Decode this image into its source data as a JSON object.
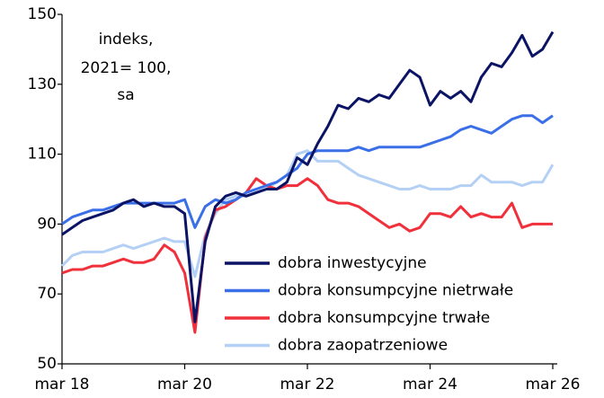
{
  "chart_data": {
    "type": "line",
    "annotation": [
      "indeks,",
      "2021= 100,",
      "sa"
    ],
    "categories": [
      "mar 18",
      null,
      null,
      null,
      null,
      null,
      null,
      null,
      null,
      null,
      null,
      null,
      "mar 20",
      null,
      null,
      null,
      null,
      null,
      null,
      null,
      null,
      null,
      null,
      null,
      "mar 22",
      null,
      null,
      null,
      null,
      null,
      null,
      null,
      null,
      null,
      null,
      null,
      "mar 24",
      null,
      null,
      null,
      null,
      null,
      null,
      null,
      null,
      null,
      null,
      null,
      "mar 26"
    ],
    "ylim": [
      50,
      150
    ],
    "yticks": [
      50,
      70,
      90,
      110,
      130,
      150
    ],
    "legend": "bottom-right",
    "series": [
      {
        "name": "dobra inwestycyjne",
        "color": "#0b1464",
        "values": [
          87,
          89,
          91,
          92,
          93,
          94,
          96,
          97,
          95,
          96,
          95,
          95,
          93,
          62,
          85,
          95,
          98,
          99,
          98,
          99,
          100,
          100,
          102,
          109,
          107,
          113,
          118,
          124,
          123,
          126,
          125,
          127,
          126,
          130,
          134,
          132,
          124,
          128,
          126,
          128,
          125,
          132,
          136,
          135,
          139,
          144,
          138,
          140,
          145
        ]
      },
      {
        "name": "dobra konsumpcyjne nietrwałe",
        "color": "#3a6fe8",
        "values": [
          90,
          92,
          93,
          94,
          94,
          95,
          96,
          96,
          96,
          96,
          96,
          96,
          97,
          89,
          95,
          97,
          96,
          97,
          99,
          100,
          101,
          102,
          104,
          106,
          110,
          111,
          111,
          111,
          111,
          112,
          111,
          112,
          112,
          112,
          112,
          112,
          113,
          114,
          115,
          117,
          118,
          117,
          116,
          118,
          120,
          121,
          121,
          119,
          121
        ]
      },
      {
        "name": "dobra konsumpcyjne trwałe",
        "color": "#f0303a",
        "values": [
          76,
          77,
          77,
          78,
          78,
          79,
          80,
          79,
          79,
          80,
          84,
          82,
          76,
          59,
          86,
          94,
          95,
          97,
          99,
          103,
          101,
          100,
          101,
          101,
          103,
          101,
          97,
          96,
          96,
          95,
          93,
          91,
          89,
          90,
          88,
          89,
          93,
          93,
          92,
          95,
          92,
          93,
          92,
          92,
          96,
          89,
          90,
          90,
          90
        ]
      },
      {
        "name": "dobra zaopatrzeniowe",
        "color": "#b4d0f5",
        "values": [
          78,
          81,
          82,
          82,
          82,
          83,
          84,
          83,
          84,
          85,
          86,
          85,
          85,
          75,
          87,
          93,
          97,
          98,
          98,
          99,
          100,
          102,
          104,
          110,
          111,
          108,
          108,
          108,
          106,
          104,
          103,
          102,
          101,
          100,
          100,
          101,
          100,
          100,
          100,
          101,
          101,
          104,
          102,
          102,
          102,
          101,
          102,
          102,
          107
        ]
      }
    ]
  }
}
